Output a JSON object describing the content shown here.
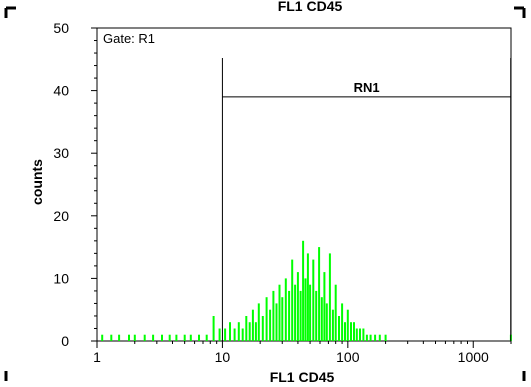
{
  "chart_data": {
    "type": "bar",
    "title": "FL1 CD45",
    "xlabel": "FL1 CD45",
    "ylabel": "counts",
    "gate_label": "Gate: R1",
    "x_scale": "log",
    "xlim": [
      1,
      2000
    ],
    "ylim": [
      0,
      50
    ],
    "x_ticks": [
      1,
      10,
      100,
      1000
    ],
    "x_tick_labels": [
      "1",
      "10",
      "100",
      "1000"
    ],
    "y_ticks": [
      0,
      10,
      20,
      30,
      40,
      50
    ],
    "y_tick_labels": [
      "0",
      "10",
      "20",
      "30",
      "40",
      "50"
    ],
    "grid": false,
    "bar_color": "#00ff00",
    "region": {
      "name": "RN1",
      "x_start": 10,
      "x_end": 1990,
      "y_level": 39
    },
    "bins": [
      {
        "x": 1.1,
        "count": 1
      },
      {
        "x": 1.3,
        "count": 1
      },
      {
        "x": 1.5,
        "count": 1
      },
      {
        "x": 1.8,
        "count": 1
      },
      {
        "x": 2.0,
        "count": 1
      },
      {
        "x": 2.4,
        "count": 1
      },
      {
        "x": 2.8,
        "count": 1
      },
      {
        "x": 3.3,
        "count": 1
      },
      {
        "x": 3.8,
        "count": 1
      },
      {
        "x": 4.3,
        "count": 1
      },
      {
        "x": 5.0,
        "count": 1
      },
      {
        "x": 5.6,
        "count": 1
      },
      {
        "x": 6.5,
        "count": 1
      },
      {
        "x": 7.5,
        "count": 1
      },
      {
        "x": 8.5,
        "count": 4
      },
      {
        "x": 9.5,
        "count": 2
      },
      {
        "x": 10.5,
        "count": 2
      },
      {
        "x": 11.5,
        "count": 3
      },
      {
        "x": 12.5,
        "count": 2
      },
      {
        "x": 13.5,
        "count": 3
      },
      {
        "x": 14.5,
        "count": 2
      },
      {
        "x": 15.5,
        "count": 4
      },
      {
        "x": 16.5,
        "count": 3
      },
      {
        "x": 17.5,
        "count": 5
      },
      {
        "x": 18.5,
        "count": 3
      },
      {
        "x": 19.5,
        "count": 6
      },
      {
        "x": 21,
        "count": 4
      },
      {
        "x": 22.5,
        "count": 7
      },
      {
        "x": 24,
        "count": 5
      },
      {
        "x": 25.5,
        "count": 8
      },
      {
        "x": 27,
        "count": 6
      },
      {
        "x": 28.5,
        "count": 9
      },
      {
        "x": 30,
        "count": 7
      },
      {
        "x": 32,
        "count": 10
      },
      {
        "x": 34,
        "count": 8
      },
      {
        "x": 36,
        "count": 13
      },
      {
        "x": 38,
        "count": 9
      },
      {
        "x": 40,
        "count": 11
      },
      {
        "x": 42,
        "count": 8
      },
      {
        "x": 44,
        "count": 16
      },
      {
        "x": 46,
        "count": 10
      },
      {
        "x": 48,
        "count": 14
      },
      {
        "x": 50,
        "count": 9
      },
      {
        "x": 53,
        "count": 13
      },
      {
        "x": 56,
        "count": 8
      },
      {
        "x": 59,
        "count": 15
      },
      {
        "x": 62,
        "count": 7
      },
      {
        "x": 65,
        "count": 11
      },
      {
        "x": 68,
        "count": 6
      },
      {
        "x": 72,
        "count": 14
      },
      {
        "x": 76,
        "count": 5
      },
      {
        "x": 80,
        "count": 9
      },
      {
        "x": 85,
        "count": 4
      },
      {
        "x": 90,
        "count": 6
      },
      {
        "x": 95,
        "count": 3
      },
      {
        "x": 100,
        "count": 5
      },
      {
        "x": 106,
        "count": 3
      },
      {
        "x": 112,
        "count": 3
      },
      {
        "x": 118,
        "count": 2
      },
      {
        "x": 125,
        "count": 2
      },
      {
        "x": 133,
        "count": 2
      },
      {
        "x": 142,
        "count": 1
      },
      {
        "x": 152,
        "count": 1
      },
      {
        "x": 165,
        "count": 1
      },
      {
        "x": 180,
        "count": 1
      },
      {
        "x": 200,
        "count": 1
      },
      {
        "x": 1995,
        "count": 1
      }
    ]
  }
}
